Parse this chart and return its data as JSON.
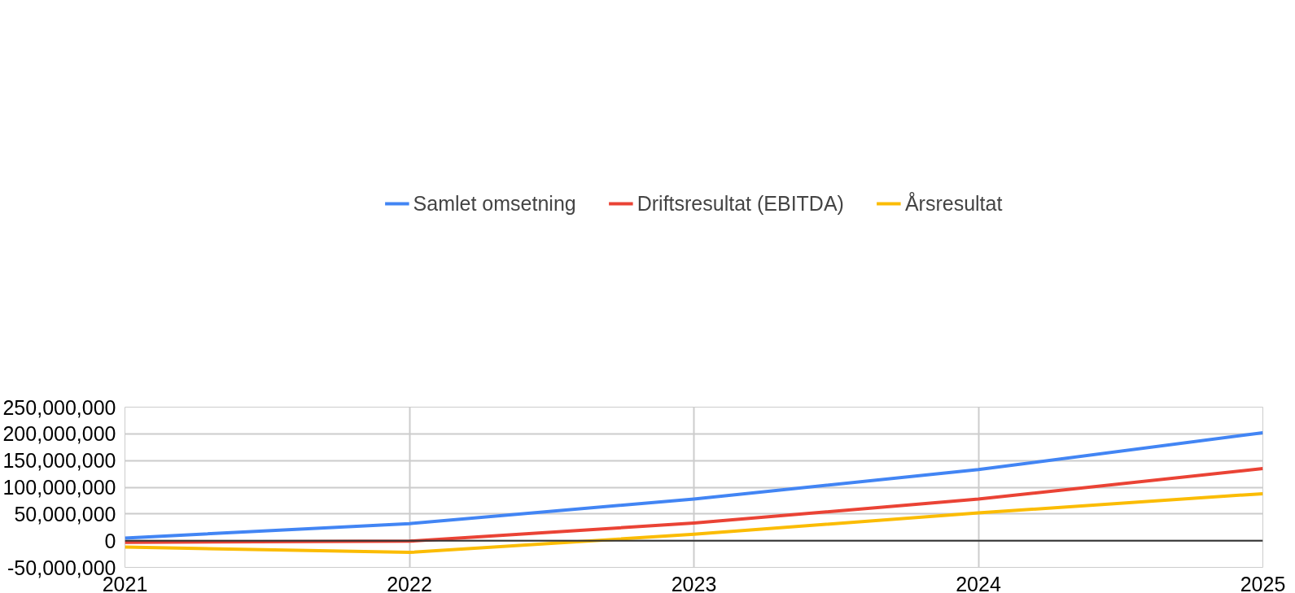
{
  "chart_data": {
    "type": "line",
    "x": [
      2021,
      2022,
      2023,
      2024,
      2025
    ],
    "series": [
      {
        "name": "Samlet omsetning",
        "color": "#4285f4",
        "values": [
          5000000,
          32000000,
          78000000,
          133000000,
          202000000
        ]
      },
      {
        "name": "Driftsresultat (EBITDA)",
        "color": "#ea4335",
        "values": [
          -3000000,
          -1000000,
          33000000,
          78000000,
          135000000
        ]
      },
      {
        "name": "Årsresultat",
        "color": "#fbbc04",
        "values": [
          -12000000,
          -22000000,
          12000000,
          52000000,
          88000000
        ]
      }
    ],
    "xlim": [
      2021,
      2025
    ],
    "xticks": [
      2021,
      2022,
      2023,
      2024,
      2025
    ],
    "ylim": [
      -50000000,
      250000000
    ],
    "yticks": [
      {
        "value": -50000000,
        "label": "-50,000,000"
      },
      {
        "value": 0,
        "label": "0"
      },
      {
        "value": 50000000,
        "label": "50,000,000"
      },
      {
        "value": 100000000,
        "label": "100,000,000"
      },
      {
        "value": 150000000,
        "label": "150,000,000"
      },
      {
        "value": 200000000,
        "label": "200,000,000"
      },
      {
        "value": 250000000,
        "label": "250,000,000"
      }
    ],
    "ref_lines": [
      {
        "axis": "y",
        "value": 0,
        "label": null,
        "color": "#333333"
      }
    ],
    "grid": true,
    "legend": "top",
    "marker": "none",
    "line_style": "solid"
  }
}
